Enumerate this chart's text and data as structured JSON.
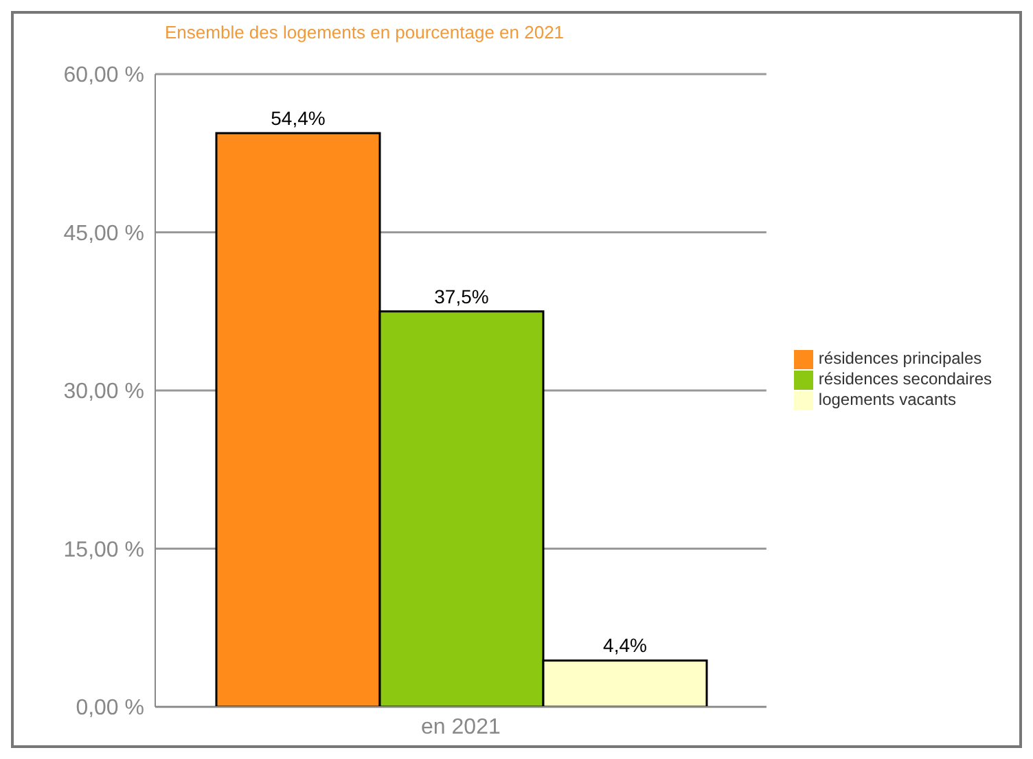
{
  "chart_data": {
    "type": "bar",
    "title": "Ensemble des logements en pourcentage en 2021",
    "categories": [
      "en 2021"
    ],
    "series": [
      {
        "name": "résidences principales",
        "color": "#ff8c1a",
        "values": [
          54.4
        ],
        "value_labels": [
          "54,4%"
        ]
      },
      {
        "name": "résidences secondaires",
        "color": "#8cc811",
        "values": [
          37.5
        ],
        "value_labels": [
          "37,5%"
        ]
      },
      {
        "name": "logements vacants",
        "color": "#ffffc8",
        "values": [
          4.4
        ],
        "value_labels": [
          "4,4%"
        ]
      }
    ],
    "ylim": [
      0,
      60
    ],
    "yticks": [
      {
        "value": 0,
        "label": "0,00 %"
      },
      {
        "value": 15,
        "label": "15,00 %"
      },
      {
        "value": 30,
        "label": "30,00 %"
      },
      {
        "value": 45,
        "label": "45,00 %"
      },
      {
        "value": 60,
        "label": "60,00 %"
      }
    ],
    "grid": "y",
    "legend": "right"
  }
}
